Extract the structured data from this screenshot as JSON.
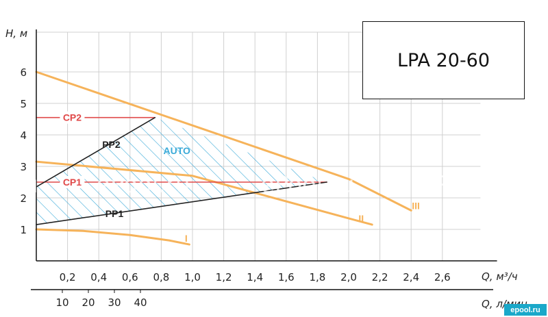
{
  "model": "LPA 20-60",
  "site_badge": "epool.ru",
  "watermark": [
    "l.ru",
    "ePool.ru",
    "ePool.ru",
    "ePool.ru"
  ],
  "colors": {
    "curve": "#f6b35a",
    "cp": "#e04848",
    "pp": "#222222",
    "auto": "#3aaad8",
    "grid": "#d0d0d0"
  },
  "chart_data": {
    "type": "line",
    "ylabel": "H, м",
    "xlabel": "Q, м³/ч",
    "x2label": "Q, л/мин",
    "xlim": [
      0,
      2.8
    ],
    "ylim": [
      0,
      7
    ],
    "x_ticks": [
      "0,2",
      "0,4",
      "0,6",
      "0,8",
      "1,0",
      "1,2",
      "1,4",
      "1,6",
      "1,8",
      "2,0",
      "2,2",
      "2,4",
      "2,6"
    ],
    "x_tick_values": [
      0.2,
      0.4,
      0.6,
      0.8,
      1.0,
      1.2,
      1.4,
      1.6,
      1.8,
      2.0,
      2.2,
      2.4,
      2.6
    ],
    "y_ticks": [
      "1",
      "2",
      "3",
      "4",
      "5",
      "6"
    ],
    "y_tick_values": [
      1,
      2,
      3,
      4,
      5,
      6
    ],
    "x2_ticks": [
      "10",
      "20",
      "30",
      "40"
    ],
    "x2_tick_values": [
      10,
      20,
      30,
      40
    ],
    "grid": true,
    "series": [
      {
        "name": "I",
        "kind": "curve",
        "x": [
          0,
          0.3,
          0.6,
          0.85,
          0.98
        ],
        "y": [
          1.0,
          0.95,
          0.82,
          0.65,
          0.52
        ]
      },
      {
        "name": "II",
        "kind": "curve",
        "x": [
          0,
          1.0,
          2.0,
          2.15
        ],
        "y": [
          3.15,
          2.7,
          1.35,
          1.15
        ]
      },
      {
        "name": "III",
        "kind": "curve",
        "x": [
          0,
          1.0,
          2.0,
          2.4
        ],
        "y": [
          6.0,
          4.3,
          2.6,
          1.6
        ]
      },
      {
        "name": "CP2",
        "kind": "cp",
        "x": [
          0,
          0.76
        ],
        "y": [
          4.55,
          4.55
        ]
      },
      {
        "name": "CP1",
        "kind": "cp",
        "x": [
          0,
          1.86
        ],
        "y": [
          2.5,
          2.5
        ]
      },
      {
        "name": "PP2",
        "kind": "pp",
        "x": [
          0,
          0.76
        ],
        "y": [
          2.35,
          4.55
        ]
      },
      {
        "name": "PP1",
        "kind": "pp",
        "x": [
          0,
          1.86
        ],
        "y": [
          1.15,
          2.5
        ]
      }
    ],
    "annotations": [
      {
        "text": "AUTO",
        "x": 0.9,
        "y": 3.5
      },
      {
        "text": "I",
        "x": 0.96,
        "y": 0.72
      },
      {
        "text": "II",
        "x": 2.08,
        "y": 1.35
      },
      {
        "text": "III",
        "x": 2.43,
        "y": 1.75
      },
      {
        "text": "CP2",
        "x": 0.23,
        "y": 4.55
      },
      {
        "text": "CP1",
        "x": 0.23,
        "y": 2.5
      },
      {
        "text": "PP2",
        "x": 0.48,
        "y": 3.7
      },
      {
        "text": "PP1",
        "x": 0.5,
        "y": 1.5
      }
    ],
    "auto_region": {
      "x": [
        0,
        0.76,
        1.86,
        0
      ],
      "y": [
        2.35,
        4.55,
        2.5,
        1.15
      ]
    }
  }
}
